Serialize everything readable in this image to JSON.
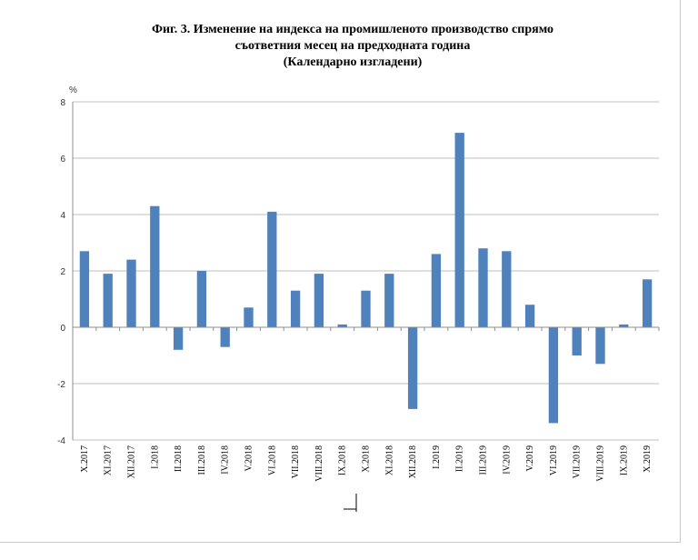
{
  "chart_data": {
    "type": "bar",
    "title": [
      "Фиг. 3. Изменение на индекса на промишленото производство спрямо",
      "съответния месец на предходната година",
      "(Календарно изгладени)"
    ],
    "ylabel": "%",
    "xlabel": "",
    "ylim": [
      -4,
      8
    ],
    "yticks": [
      "-4",
      "-2",
      "0",
      "2",
      "4",
      "6",
      "8"
    ],
    "grid": true,
    "bar_color": "#4f81bd",
    "categories": [
      "X.2017",
      "XI.2017",
      "XII.2017",
      "I.2018",
      "II.2018",
      "III.2018",
      "IV.2018",
      "V.2018",
      "VI.2018",
      "VII.2018",
      "VIII.2018",
      "IX.2018",
      "X.2018",
      "XI.2018",
      "XII.2018",
      "I.2019",
      "II.2019",
      "III.2019",
      "IV.2019",
      "V.2019",
      "VI.2019",
      "VII.2019",
      "VIII.2019",
      "IX.2019",
      "X.2019"
    ],
    "values": [
      2.7,
      1.9,
      2.4,
      4.3,
      -0.8,
      2.0,
      -0.7,
      0.7,
      4.1,
      1.3,
      1.9,
      0.1,
      1.3,
      1.9,
      -2.9,
      2.6,
      6.9,
      2.8,
      2.7,
      0.8,
      -3.4,
      -1.0,
      -1.3,
      0.1,
      1.7
    ]
  }
}
